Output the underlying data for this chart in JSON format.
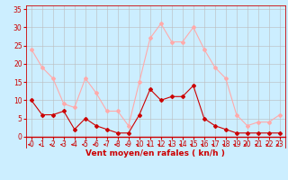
{
  "x": [
    0,
    1,
    2,
    3,
    4,
    5,
    6,
    7,
    8,
    9,
    10,
    11,
    12,
    13,
    14,
    15,
    16,
    17,
    18,
    19,
    20,
    21,
    22,
    23
  ],
  "avg_wind": [
    10,
    6,
    6,
    7,
    2,
    5,
    3,
    2,
    1,
    1,
    6,
    13,
    10,
    11,
    11,
    14,
    5,
    3,
    2,
    1,
    1,
    1,
    1,
    1
  ],
  "gust_wind": [
    24,
    19,
    16,
    9,
    8,
    16,
    12,
    7,
    7,
    3,
    15,
    27,
    31,
    26,
    26,
    30,
    24,
    19,
    16,
    6,
    3,
    4,
    4,
    6
  ],
  "avg_color": "#cc0000",
  "gust_color": "#ffaaaa",
  "background_color": "#cceeff",
  "grid_color": "#bbbbbb",
  "xlabel": "Vent moyen/en rafales ( kn/h )",
  "yticks": [
    0,
    5,
    10,
    15,
    20,
    25,
    30,
    35
  ],
  "xticks": [
    0,
    1,
    2,
    3,
    4,
    5,
    6,
    7,
    8,
    9,
    10,
    11,
    12,
    13,
    14,
    15,
    16,
    17,
    18,
    19,
    20,
    21,
    22,
    23
  ],
  "tick_color": "#cc0000",
  "label_fontsize": 6.5,
  "tick_fontsize": 5.5,
  "arrow_color": "#cc0000"
}
